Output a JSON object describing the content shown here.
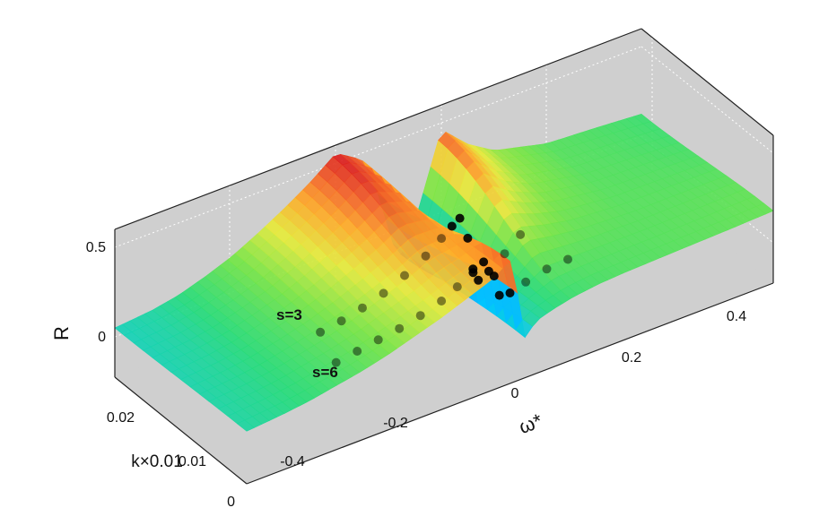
{
  "chart_data": {
    "type": "surface",
    "title": "",
    "xlabel": "ω*",
    "ylabel": "k×0.01",
    "zlabel": "R",
    "x_ticks": [
      "-0.4",
      "-0.2",
      "0",
      "0.2",
      "0.4"
    ],
    "y_ticks": [
      "0",
      "0.01",
      "0.02"
    ],
    "z_ticks": [
      "0",
      "0.5"
    ],
    "x_range": [
      -0.52,
      0.48
    ],
    "y_range": [
      0,
      0.03
    ],
    "z_range": [
      -0.3,
      0.6
    ],
    "grid": true,
    "colormap": "jet",
    "colors": {
      "background_wall": "#cfcfcf",
      "box_line": "#222222",
      "grid_line": "#ffffff",
      "series_s3": "#000000",
      "series_s6": "#000000"
    },
    "surface_profile": {
      "omega": [
        -0.52,
        -0.45,
        -0.4,
        -0.35,
        -0.3,
        -0.25,
        -0.2,
        -0.15,
        -0.1,
        -0.05,
        -0.03,
        -0.01,
        0.0,
        0.01,
        0.03,
        0.06,
        0.1,
        0.15,
        0.2,
        0.3,
        0.4,
        0.48
      ],
      "R_at_k0": [
        0.02,
        0.04,
        0.06,
        0.09,
        0.12,
        0.16,
        0.21,
        0.26,
        0.32,
        0.38,
        0.43,
        0.46,
        -0.08,
        -0.05,
        0.02,
        0.05,
        0.08,
        0.1,
        0.11,
        0.12,
        0.13,
        0.14
      ],
      "R_at_k003": [
        0.0,
        0.02,
        0.05,
        0.1,
        0.16,
        0.24,
        0.33,
        0.43,
        0.55,
        0.45,
        0.3,
        0.1,
        -0.05,
        -0.15,
        -0.25,
        0.05,
        0.45,
        0.3,
        0.2,
        0.12,
        0.1,
        0.08
      ]
    },
    "series": [
      {
        "name": "s=3",
        "color": "#000000",
        "points": [
          {
            "omega": -0.28,
            "k": 0.012,
            "R": 0.07
          },
          {
            "omega": -0.24,
            "k": 0.012,
            "R": 0.09
          },
          {
            "omega": -0.2,
            "k": 0.012,
            "R": 0.12
          },
          {
            "omega": -0.16,
            "k": 0.012,
            "R": 0.16
          },
          {
            "omega": -0.12,
            "k": 0.012,
            "R": 0.22
          },
          {
            "omega": -0.08,
            "k": 0.012,
            "R": 0.29
          },
          {
            "omega": -0.05,
            "k": 0.012,
            "R": 0.36
          },
          {
            "omega": -0.03,
            "k": 0.012,
            "R": 0.41
          },
          {
            "omega": -0.015,
            "k": 0.012,
            "R": 0.44
          },
          {
            "omega": 0.0,
            "k": 0.012,
            "R": 0.3
          },
          {
            "omega": 0.01,
            "k": 0.012,
            "R": 0.1
          },
          {
            "omega": 0.02,
            "k": 0.012,
            "R": 0.02
          },
          {
            "omega": 0.04,
            "k": 0.012,
            "R": 0.05
          },
          {
            "omega": 0.07,
            "k": 0.012,
            "R": 0.12
          },
          {
            "omega": 0.1,
            "k": 0.012,
            "R": 0.2
          }
        ]
      },
      {
        "name": "s=6",
        "color": "#000000",
        "points": [
          {
            "omega": -0.3,
            "k": 0.006,
            "R": 0.04
          },
          {
            "omega": -0.26,
            "k": 0.006,
            "R": 0.06
          },
          {
            "omega": -0.22,
            "k": 0.006,
            "R": 0.08
          },
          {
            "omega": -0.18,
            "k": 0.006,
            "R": 0.1
          },
          {
            "omega": -0.14,
            "k": 0.006,
            "R": 0.13
          },
          {
            "omega": -0.1,
            "k": 0.006,
            "R": 0.17
          },
          {
            "omega": -0.07,
            "k": 0.006,
            "R": 0.22
          },
          {
            "omega": -0.04,
            "k": 0.006,
            "R": 0.27
          },
          {
            "omega": -0.02,
            "k": 0.006,
            "R": 0.31
          },
          {
            "omega": 0.0,
            "k": 0.006,
            "R": 0.2
          },
          {
            "omega": 0.01,
            "k": 0.006,
            "R": 0.07
          },
          {
            "omega": 0.03,
            "k": 0.006,
            "R": 0.06
          },
          {
            "omega": 0.06,
            "k": 0.006,
            "R": 0.09
          },
          {
            "omega": 0.1,
            "k": 0.006,
            "R": 0.12
          },
          {
            "omega": 0.14,
            "k": 0.006,
            "R": 0.13
          }
        ]
      }
    ]
  }
}
